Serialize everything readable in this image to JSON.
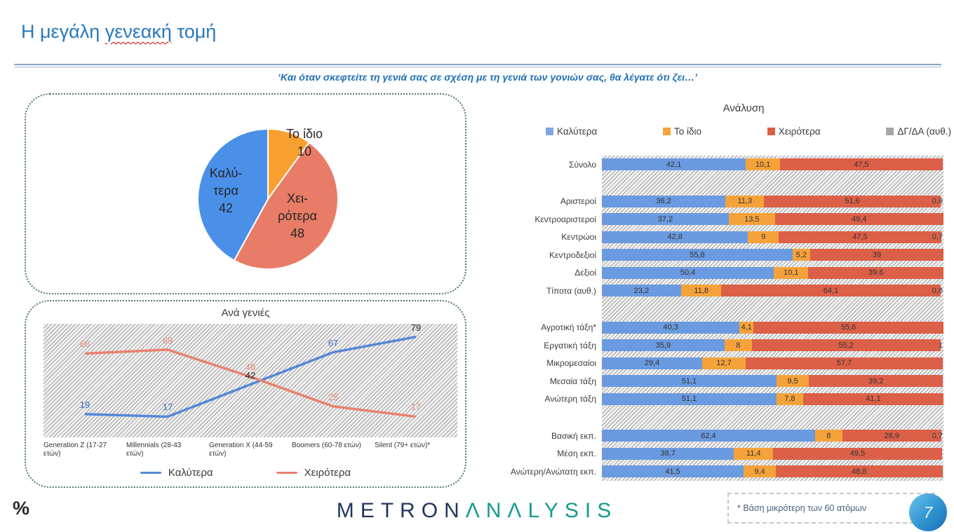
{
  "header": {
    "title": {
      "part1": "Η μεγάλη ",
      "misspelled": "γενεακή",
      "part2": " τομή"
    },
    "subtitle": "‘Και όταν σκεφτείτε τη γενιά σας σε σχέση με τη γενιά των γονιών σας, θα λέγατε ότι ζει…’"
  },
  "footer": {
    "percent_sign": "%",
    "logo_part1": "METRON",
    "logo_part2": "ΛNΛLYSIS",
    "footnote": "* Βάση μικρότερη των 60 ατόμων",
    "page_number": "7"
  },
  "chart_data": [
    {
      "type": "pie",
      "slices": [
        {
          "name": "Το ίδιο",
          "value": 10,
          "color": "#F7A030"
        },
        {
          "name": "Χειρότερα",
          "value": 48,
          "color": "#E87C66",
          "label_lines": [
            "Χει-",
            "ρότερα"
          ]
        },
        {
          "name": "Καλύτερα",
          "value": 42,
          "color": "#4A90E8",
          "label_lines": [
            "Καλύ-",
            "τερα"
          ]
        }
      ]
    },
    {
      "type": "line",
      "title": "Ανά γενιές",
      "categories": [
        "Generation Z (17-27 ετών)",
        "Millennials (28-43 ετών)",
        "Generation X (44-59 ετών)",
        "Boomers (60-78 ετών)",
        "Silent (79+ ετών)*"
      ],
      "series": [
        {
          "name": "Καλύτερα",
          "color": "#5588D8",
          "values": [
            19,
            17,
            42,
            67,
            79
          ],
          "label_colors": [
            "#3E6FC4",
            "#3E6FC4",
            "#262626",
            "#3E6FC4",
            "#262626"
          ]
        },
        {
          "name": "Χειρότερα",
          "color": "#E8826E",
          "values": [
            66,
            69,
            48,
            25,
            17
          ],
          "label_colors": [
            "#E8917E",
            "#E8917E",
            "#E8917E",
            "#E8917E",
            "#E8917E"
          ]
        }
      ],
      "ylim": [
        0,
        90
      ],
      "legend_position": "bottom"
    },
    {
      "type": "bar",
      "orientation": "horizontal-stacked",
      "title": "Ανάλυση",
      "legend": [
        {
          "label": "Καλύτερα",
          "color": "#7CA6E4"
        },
        {
          "label": "Το ίδιο",
          "color": "#F5A23A"
        },
        {
          "label": "Χειρότερα",
          "color": "#DC5F47"
        },
        {
          "label": "ΔΓ/ΔΑ (αυθ.)",
          "color": "#A6A6A6"
        }
      ],
      "series_colors": [
        "#6A9ADF",
        "#F5A23A",
        "#DC5F47"
      ],
      "xlim": [
        0,
        100
      ],
      "groups": [
        {
          "rows": [
            {
              "label": "Σύνολο",
              "values": [
                42.1,
                10.1,
                47.5
              ],
              "dk": null
            }
          ]
        },
        {
          "rows": [
            {
              "label": "Αριστεροί",
              "values": [
                36.2,
                11.3,
                51.6
              ],
              "dk": "0,8"
            },
            {
              "label": "Κεντροαριστεροί",
              "values": [
                37.2,
                13.5,
                49.4
              ],
              "dk": null
            },
            {
              "label": "Κεντρώοι",
              "values": [
                42.8,
                9,
                47.5
              ],
              "dk": "0,7"
            },
            {
              "label": "Κεντροδεξιοί",
              "values": [
                55.8,
                5.2,
                39
              ],
              "dk": null
            },
            {
              "label": "Δεξιοί",
              "values": [
                50.4,
                10.1,
                39.6
              ],
              "dk": null
            },
            {
              "label": "Τίποτα (αυθ.)",
              "values": [
                23.2,
                11.8,
                64.1
              ],
              "dk": "0,8"
            }
          ]
        },
        {
          "rows": [
            {
              "label": "Αγροτική τάξη*",
              "values": [
                40.3,
                4.1,
                55.6
              ],
              "dk": null
            },
            {
              "label": "Εργατική τάξη",
              "values": [
                35.9,
                8,
                55.2
              ],
              "dk": "1"
            },
            {
              "label": "Μικρομεσαίοι",
              "values": [
                29.4,
                12.7,
                57.7
              ],
              "dk": null
            },
            {
              "label": "Μεσαία τάξη",
              "values": [
                51.1,
                9.5,
                39.2
              ],
              "dk": null
            },
            {
              "label": "Ανώτερη τάξη",
              "values": [
                51.1,
                7.8,
                41.1
              ],
              "dk": null
            }
          ]
        },
        {
          "rows": [
            {
              "label": "Βασική εκπ.",
              "values": [
                62.4,
                8,
                28.9
              ],
              "dk": "0,7"
            },
            {
              "label": "Μέση εκπ.",
              "values": [
                38.7,
                11.4,
                49.5
              ],
              "dk": null
            },
            {
              "label": "Ανώτερη/Ανώτατη εκπ.",
              "values": [
                41.5,
                9.4,
                48.8
              ],
              "dk": null
            }
          ]
        }
      ]
    }
  ]
}
